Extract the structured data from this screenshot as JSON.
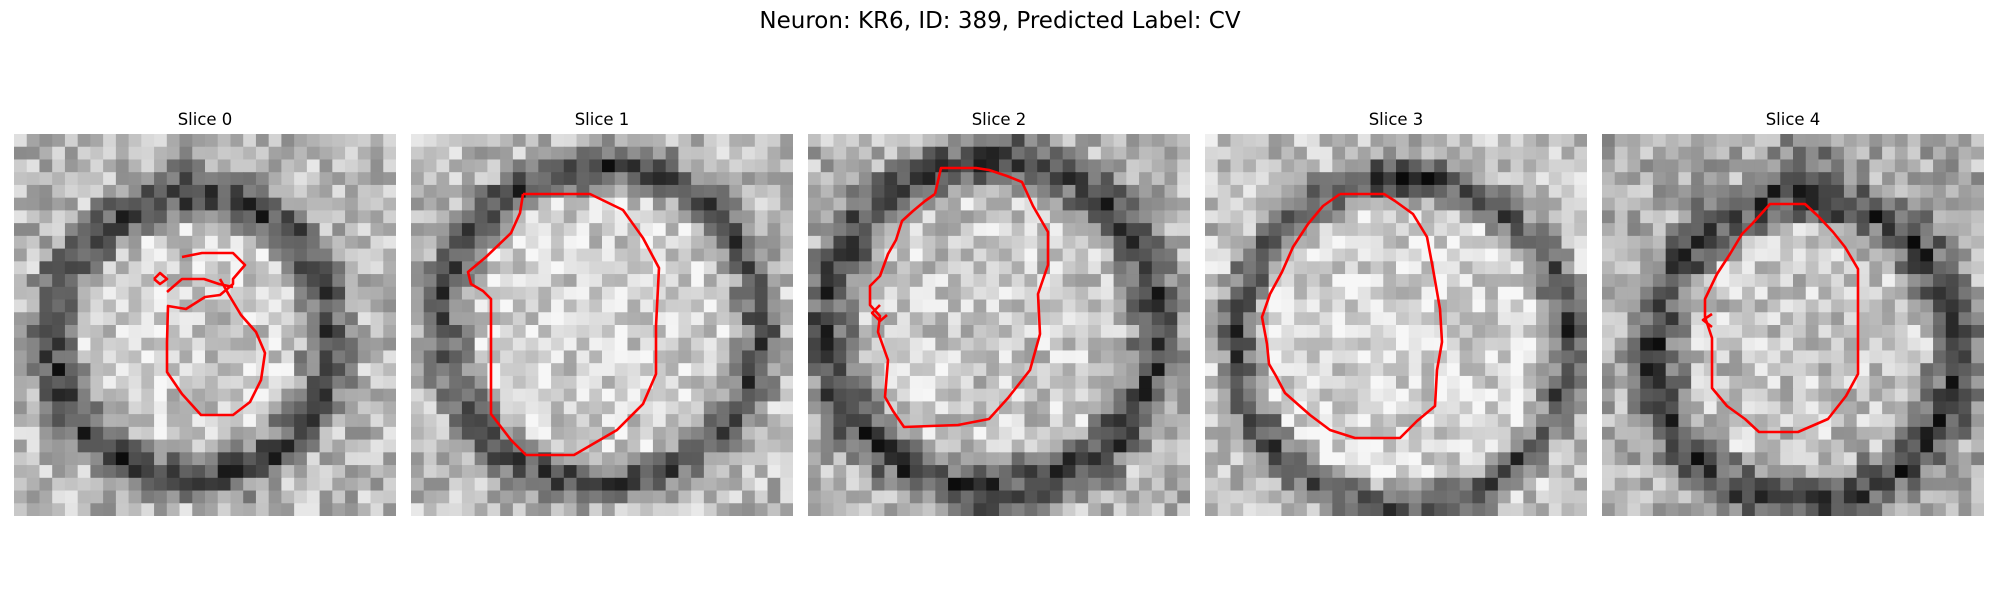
{
  "figure": {
    "title": "Neuron: KR6, ID: 389, Predicted Label: CV",
    "colors": {
      "contour": "#ff0000",
      "background": "#ffffff"
    },
    "slices": [
      {
        "title": "Slice 0",
        "image": "grayscale EM crop showing a roughly circular cell surrounded by a dark membrane ring",
        "seed": 11,
        "ring_radius": 11.0,
        "ring_width": 2.4,
        "center": [
          13.5,
          15.5
        ],
        "top_blob": 0.6,
        "bg_level": 0.72
      },
      {
        "title": "Slice 1",
        "image": "grayscale EM crop showing a large round cell with dark boundary",
        "seed": 23,
        "ring_radius": 12.5,
        "ring_width": 2.2,
        "center": [
          14.5,
          14.5
        ],
        "top_blob": 0.3,
        "bg_level": 0.74
      },
      {
        "title": "Slice 2",
        "image": "grayscale EM crop showing a large round cell with thick dark boundary",
        "seed": 37,
        "ring_radius": 13.0,
        "ring_width": 2.6,
        "center": [
          14.0,
          14.5
        ],
        "top_blob": 0.2,
        "bg_level": 0.7
      },
      {
        "title": "Slice 3",
        "image": "grayscale EM crop showing a large pale cell with dark membrane at the top",
        "seed": 41,
        "ring_radius": 13.0,
        "ring_width": 2.0,
        "center": [
          15.0,
          16.0
        ],
        "top_blob": 0.9,
        "bg_level": 0.76
      },
      {
        "title": "Slice 4",
        "image": "grayscale EM crop showing a round cell with a dark membrane wedge at the top",
        "seed": 59,
        "ring_radius": 12.0,
        "ring_width": 2.4,
        "center": [
          15.5,
          16.5
        ],
        "top_blob": 1.0,
        "bg_level": 0.68
      }
    ]
  }
}
